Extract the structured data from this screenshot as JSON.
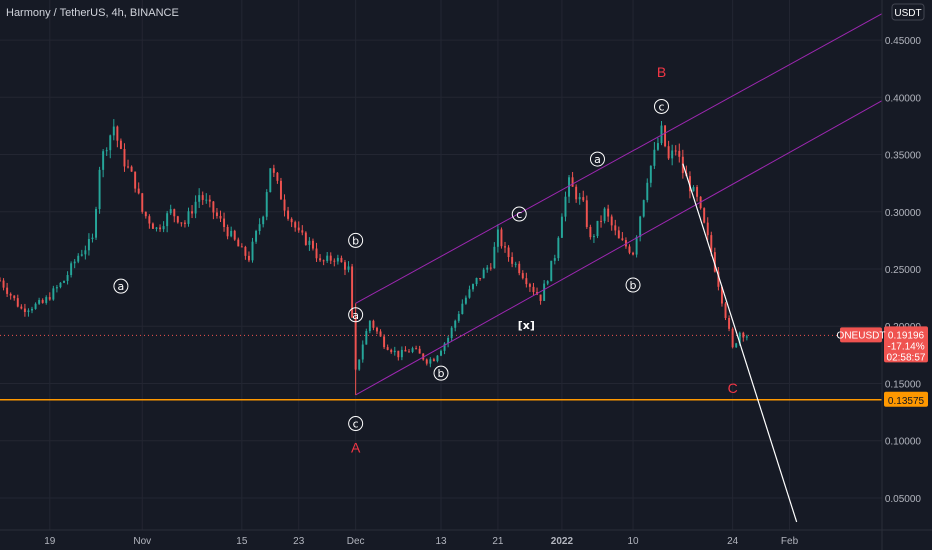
{
  "header": {
    "title": "Harmony / TetherUS, 4h, BINANCE"
  },
  "currency_badge": "USDT",
  "chart_data": {
    "type": "candlestick",
    "title": "Harmony / TetherUS, 4h, BINANCE",
    "y_axis": {
      "ticks": [
        "0.45000",
        "0.40000",
        "0.35000",
        "0.30000",
        "0.25000",
        "0.20000",
        "0.15000",
        "0.10000",
        "0.05000"
      ],
      "tick_values": [
        0.45,
        0.4,
        0.35,
        0.3,
        0.25,
        0.2,
        0.15,
        0.1,
        0.05
      ],
      "range": [
        0.022,
        0.485
      ]
    },
    "x_axis": {
      "ticks": [
        "19",
        "Nov",
        "15",
        "23",
        "Dec",
        "13",
        "21",
        "2022",
        "10",
        "24",
        "Feb"
      ],
      "tick_days": [
        0,
        13,
        27,
        35,
        43,
        55,
        63,
        72,
        82,
        96,
        104
      ],
      "range_days": [
        -7,
        117
      ]
    },
    "price_path": [
      [
        -7,
        0.24
      ],
      [
        -4,
        0.215
      ],
      [
        -1,
        0.22
      ],
      [
        2,
        0.24
      ],
      [
        4,
        0.262
      ],
      [
        6,
        0.275
      ],
      [
        7,
        0.34
      ],
      [
        8,
        0.36
      ],
      [
        9,
        0.375
      ],
      [
        10,
        0.35
      ],
      [
        12,
        0.325
      ],
      [
        13,
        0.3
      ],
      [
        15,
        0.285
      ],
      [
        17,
        0.3
      ],
      [
        19,
        0.29
      ],
      [
        21,
        0.315
      ],
      [
        23,
        0.3
      ],
      [
        25,
        0.283
      ],
      [
        27,
        0.265
      ],
      [
        28,
        0.26
      ],
      [
        30,
        0.3
      ],
      [
        31,
        0.34
      ],
      [
        33,
        0.305
      ],
      [
        35,
        0.28
      ],
      [
        37,
        0.27
      ],
      [
        38,
        0.255
      ],
      [
        40,
        0.26
      ],
      [
        42,
        0.25
      ],
      [
        43,
        0.16
      ],
      [
        44,
        0.185
      ],
      [
        45,
        0.205
      ],
      [
        47,
        0.185
      ],
      [
        49,
        0.175
      ],
      [
        51,
        0.18
      ],
      [
        53,
        0.17
      ],
      [
        54,
        0.172
      ],
      [
        56,
        0.19
      ],
      [
        58,
        0.22
      ],
      [
        60,
        0.24
      ],
      [
        62,
        0.255
      ],
      [
        63,
        0.28
      ],
      [
        64,
        0.265
      ],
      [
        66,
        0.25
      ],
      [
        68,
        0.232
      ],
      [
        69,
        0.225
      ],
      [
        71,
        0.262
      ],
      [
        72,
        0.3
      ],
      [
        73,
        0.325
      ],
      [
        75,
        0.305
      ],
      [
        76,
        0.275
      ],
      [
        78,
        0.3
      ],
      [
        80,
        0.275
      ],
      [
        82,
        0.265
      ],
      [
        84,
        0.33
      ],
      [
        86,
        0.37
      ],
      [
        87,
        0.345
      ],
      [
        88,
        0.355
      ],
      [
        89,
        0.335
      ],
      [
        91,
        0.31
      ],
      [
        93,
        0.265
      ],
      [
        95,
        0.21
      ],
      [
        96,
        0.18
      ],
      [
        97,
        0.195
      ],
      [
        98,
        0.192
      ]
    ],
    "series": [
      {
        "name": "ONEUSDT",
        "last_price": "0.19196",
        "change": "-17.14%",
        "countdown": "02:58:57"
      }
    ],
    "horizontal_line": {
      "value": 0.13575,
      "label": "0.13575"
    },
    "channel_lines": [
      {
        "from": [
          43,
          0.22
        ],
        "to": [
          117,
          0.473
        ]
      },
      {
        "from": [
          43,
          0.14
        ],
        "to": [
          117,
          0.397
        ]
      }
    ],
    "projection_line": {
      "from": [
        89,
        0.342
      ],
      "to": [
        105,
        0.029
      ]
    },
    "annotations": [
      {
        "text": "a",
        "circled": true,
        "day": 10,
        "value": 0.235
      },
      {
        "text": "b",
        "circled": true,
        "day": 43,
        "value": 0.275
      },
      {
        "text": "a",
        "circled": true,
        "day": 43,
        "value": 0.21
      },
      {
        "text": "c",
        "circled": true,
        "day": 43,
        "value": 0.115
      },
      {
        "text": "A",
        "circled": false,
        "day": 43,
        "value": 0.094
      },
      {
        "text": "b",
        "circled": true,
        "day": 55,
        "value": 0.159
      },
      {
        "text": "c",
        "circled": true,
        "day": 66,
        "value": 0.298
      },
      {
        "text": "[x]",
        "circled": false,
        "day": 67,
        "value": 0.202
      },
      {
        "text": "a",
        "circled": true,
        "day": 77,
        "value": 0.346
      },
      {
        "text": "b",
        "circled": true,
        "day": 82,
        "value": 0.236
      },
      {
        "text": "c",
        "circled": true,
        "day": 86,
        "value": 0.392
      },
      {
        "text": "B",
        "circled": false,
        "day": 86,
        "value": 0.422
      },
      {
        "text": "C",
        "circled": false,
        "day": 96,
        "value": 0.146
      }
    ],
    "colors": {
      "background": "#161a25",
      "up": "#26a69a",
      "down": "#ef5350",
      "channel": "#9c27b0",
      "hline": "#ff9800",
      "projection": "#ffffff",
      "label_red": "#f23645"
    }
  }
}
